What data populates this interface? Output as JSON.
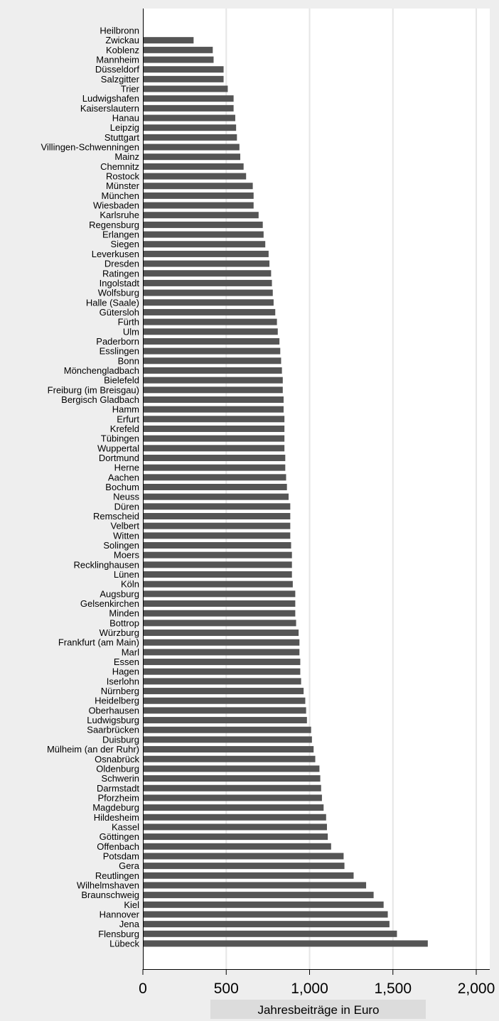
{
  "chart_data": {
    "type": "bar",
    "orientation": "horizontal",
    "xlabel": "Jahresbeiträge in Euro",
    "xlim": [
      0,
      2100
    ],
    "xticks": [
      0,
      500,
      1000,
      1500,
      2000
    ],
    "xtick_labels": [
      "0",
      "500",
      "1,000",
      "1,500",
      "2,000"
    ],
    "grid": true,
    "legend": "none",
    "colors": {
      "bar": "#555555",
      "outer_background": "#eeeeee",
      "plot_background": "#ffffff",
      "grid": "#e6e6e6",
      "title_box": "#dcdcdc"
    },
    "categories": [
      "Heilbronn",
      "Zwickau",
      "Koblenz",
      "Mannheim",
      "Düsseldorf",
      "Salzgitter",
      "Trier",
      "Ludwigshafen",
      "Kaiserslautern",
      "Hanau",
      "Leipzig",
      "Stuttgart",
      "Villingen-Schwenningen",
      "Mainz",
      "Chemnitz",
      "Rostock",
      "Münster",
      "München",
      "Wiesbaden",
      "Karlsruhe",
      "Regensburg",
      "Erlangen",
      "Siegen",
      "Leverkusen",
      "Dresden",
      "Ratingen",
      "Ingolstadt",
      "Wolfsburg",
      "Halle (Saale)",
      "Gütersloh",
      "Fürth",
      "Ulm",
      "Paderborn",
      "Esslingen",
      "Bonn",
      "Mönchengladbach",
      "Bielefeld",
      "Freiburg (im Breisgau)",
      "Bergisch Gladbach",
      "Hamm",
      "Erfurt",
      "Krefeld",
      "Tübingen",
      "Wuppertal",
      "Dortmund",
      "Herne",
      "Aachen",
      "Bochum",
      "Neuss",
      "Düren",
      "Remscheid",
      "Velbert",
      "Witten",
      "Solingen",
      "Moers",
      "Recklinghausen",
      "Lünen",
      "Köln",
      "Augsburg",
      "Gelsenkirchen",
      "Minden",
      "Bottrop",
      "Würzburg",
      "Frankfurt (am Main)",
      "Marl",
      "Essen",
      "Hagen",
      "Iserlohn",
      "Nürnberg",
      "Heidelberg",
      "Oberhausen",
      "Ludwigsburg",
      "Saarbrücken",
      "Duisburg",
      "Mülheim (an der Ruhr)",
      "Osnabrück",
      "Oldenburg",
      "Schwerin",
      "Darmstadt",
      "Pforzheim",
      "Magdeburg",
      "Hildesheim",
      "Kassel",
      "Göttingen",
      "Offenbach",
      "Potsdam",
      "Gera",
      "Reutlingen",
      "Wilhelmshaven",
      "Braunschweig",
      "Kiel",
      "Hannover",
      "Jena",
      "Flensburg",
      "Lübeck"
    ],
    "values": [
      0,
      300,
      415,
      420,
      480,
      480,
      505,
      540,
      540,
      550,
      555,
      560,
      575,
      580,
      600,
      615,
      655,
      660,
      660,
      690,
      715,
      720,
      730,
      750,
      755,
      765,
      770,
      775,
      780,
      790,
      800,
      805,
      815,
      820,
      825,
      830,
      835,
      835,
      840,
      840,
      845,
      845,
      845,
      845,
      850,
      850,
      855,
      860,
      870,
      880,
      880,
      880,
      880,
      885,
      890,
      890,
      890,
      895,
      910,
      910,
      910,
      915,
      930,
      935,
      935,
      940,
      940,
      945,
      960,
      970,
      975,
      980,
      1005,
      1010,
      1020,
      1030,
      1055,
      1060,
      1065,
      1070,
      1080,
      1095,
      1100,
      1105,
      1125,
      1200,
      1205,
      1260,
      1335,
      1380,
      1440,
      1465,
      1475,
      1520,
      1705
    ]
  }
}
